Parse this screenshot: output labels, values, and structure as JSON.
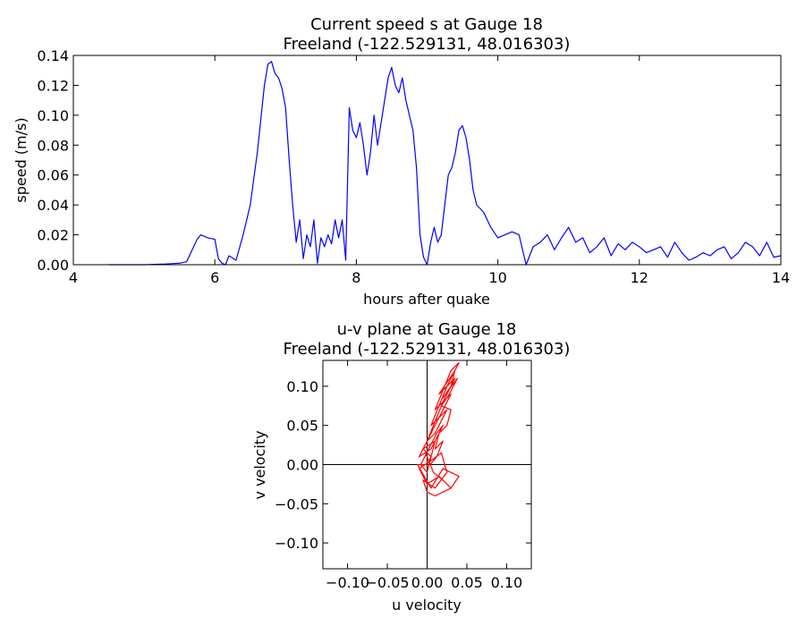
{
  "chart_data": [
    {
      "type": "line",
      "title_line1": "Current speed s at Gauge 18",
      "title_line2": "Freeland  (-122.529131, 48.016303)",
      "xlabel": "hours after quake",
      "ylabel": "speed (m/s)",
      "xlim": [
        4,
        14
      ],
      "ylim": [
        0,
        0.14
      ],
      "xticks": [
        4,
        6,
        8,
        10,
        12,
        14
      ],
      "xtick_labels": [
        "4",
        "6",
        "8",
        "10",
        "12",
        "14"
      ],
      "yticks": [
        0,
        0.02,
        0.04,
        0.06,
        0.08,
        0.1,
        0.12,
        0.14
      ],
      "ytick_labels": [
        "0.00",
        "0.02",
        "0.04",
        "0.06",
        "0.08",
        "0.10",
        "0.12",
        "0.14"
      ],
      "grid": false,
      "color": "#0000ff",
      "series": [
        {
          "x": [
            4.5,
            5.0,
            5.3,
            5.5,
            5.6,
            5.7,
            5.75,
            5.8,
            5.85,
            5.9,
            6.0,
            6.05,
            6.1,
            6.15,
            6.2,
            6.3,
            6.4,
            6.5,
            6.6,
            6.7,
            6.75,
            6.8,
            6.85,
            6.9,
            6.95,
            7.0,
            7.05,
            7.1,
            7.15,
            7.2,
            7.25,
            7.3,
            7.35,
            7.4,
            7.45,
            7.5,
            7.55,
            7.6,
            7.65,
            7.7,
            7.75,
            7.8,
            7.85,
            7.9,
            7.95,
            8.0,
            8.05,
            8.1,
            8.15,
            8.2,
            8.25,
            8.3,
            8.35,
            8.4,
            8.45,
            8.5,
            8.55,
            8.6,
            8.65,
            8.7,
            8.75,
            8.8,
            8.85,
            8.9,
            8.95,
            9.0,
            9.05,
            9.1,
            9.15,
            9.2,
            9.25,
            9.3,
            9.35,
            9.4,
            9.45,
            9.5,
            9.55,
            9.6,
            9.65,
            9.7,
            9.8,
            9.9,
            10.0,
            10.1,
            10.2,
            10.3,
            10.4,
            10.5,
            10.6,
            10.7,
            10.8,
            10.9,
            11.0,
            11.1,
            11.2,
            11.3,
            11.4,
            11.5,
            11.6,
            11.7,
            11.8,
            11.9,
            12.0,
            12.1,
            12.2,
            12.3,
            12.4,
            12.5,
            12.6,
            12.7,
            12.8,
            12.9,
            13.0,
            13.1,
            13.2,
            13.3,
            13.4,
            13.5,
            13.6,
            13.7,
            13.8,
            13.9,
            14.0
          ],
          "y": [
            0.0,
            0.0,
            0.0005,
            0.001,
            0.002,
            0.012,
            0.017,
            0.02,
            0.019,
            0.018,
            0.017,
            0.004,
            0.001,
            0.0,
            0.006,
            0.003,
            0.02,
            0.04,
            0.075,
            0.12,
            0.134,
            0.136,
            0.128,
            0.125,
            0.118,
            0.105,
            0.07,
            0.04,
            0.015,
            0.03,
            0.004,
            0.02,
            0.012,
            0.03,
            0.001,
            0.018,
            0.012,
            0.02,
            0.014,
            0.03,
            0.018,
            0.03,
            0.003,
            0.105,
            0.09,
            0.085,
            0.095,
            0.08,
            0.06,
            0.075,
            0.1,
            0.08,
            0.095,
            0.11,
            0.125,
            0.132,
            0.12,
            0.115,
            0.125,
            0.11,
            0.1,
            0.09,
            0.065,
            0.02,
            0.005,
            0.0,
            0.015,
            0.025,
            0.015,
            0.02,
            0.04,
            0.06,
            0.065,
            0.075,
            0.09,
            0.093,
            0.085,
            0.07,
            0.05,
            0.04,
            0.035,
            0.025,
            0.018,
            0.02,
            0.022,
            0.02,
            0.0,
            0.012,
            0.015,
            0.02,
            0.01,
            0.018,
            0.025,
            0.015,
            0.018,
            0.008,
            0.012,
            0.018,
            0.006,
            0.014,
            0.01,
            0.015,
            0.012,
            0.008,
            0.01,
            0.012,
            0.005,
            0.015,
            0.008,
            0.003,
            0.005,
            0.008,
            0.006,
            0.01,
            0.012,
            0.004,
            0.008,
            0.015,
            0.012,
            0.006,
            0.015,
            0.005,
            0.006
          ]
        }
      ]
    },
    {
      "type": "line",
      "title_line1": "u-v plane at Gauge 18",
      "title_line2": "Freeland  (-122.529131, 48.016303)",
      "xlabel": "u velocity",
      "ylabel": "v velocity",
      "xlim": [
        -0.131,
        0.131
      ],
      "ylim": [
        -0.133,
        0.133
      ],
      "xticks": [
        -0.1,
        -0.05,
        0.0,
        0.05,
        0.1
      ],
      "xtick_labels": [
        "−0.10",
        "−0.05",
        "0.00",
        "0.05",
        "0.10"
      ],
      "yticks": [
        -0.1,
        -0.05,
        0.0,
        0.05,
        0.1
      ],
      "ytick_labels": [
        "−0.10",
        "−0.05",
        "0.00",
        "0.05",
        "0.10"
      ],
      "grid": false,
      "axes_lines_at_zero": true,
      "color": "#ff0000",
      "series": [
        {
          "u": [
            0.0,
            0.005,
            -0.005,
            0.01,
            0.0,
            -0.008,
            0.012,
            0.02,
            0.005,
            -0.01,
            0.015,
            0.025,
            0.01,
            0.0,
            0.02,
            0.03,
            0.015,
            0.005,
            0.025,
            0.035,
            0.02,
            0.01,
            0.03,
            0.04,
            0.025,
            0.015,
            0.035,
            0.03,
            0.02,
            0.038,
            0.028,
            0.018,
            0.03,
            0.025,
            0.015,
            0.01,
            0.02,
            0.012,
            0.004,
            -0.002,
            0.008,
            0.02,
            0.03,
            0.015,
            0.0,
            -0.01,
            0.005,
            0.018,
            0.025,
            0.01,
            -0.005,
            0.0,
            0.01,
            0.03,
            0.04,
            0.02,
            0.005,
            -0.012,
            0.0
          ],
          "v": [
            0.0,
            0.01,
            0.02,
            0.03,
            -0.01,
            0.0,
            0.04,
            0.05,
            0.02,
            0.01,
            0.06,
            0.07,
            0.04,
            0.03,
            0.08,
            0.09,
            0.06,
            0.05,
            0.1,
            0.11,
            0.08,
            0.07,
            0.12,
            0.13,
            0.1,
            0.09,
            0.12,
            0.1,
            0.085,
            0.11,
            0.09,
            0.075,
            0.07,
            0.05,
            0.04,
            0.02,
            0.03,
            0.01,
            0.0,
            0.015,
            -0.01,
            -0.02,
            -0.03,
            -0.015,
            -0.025,
            -0.005,
            0.005,
            0.015,
            -0.01,
            -0.03,
            -0.02,
            -0.035,
            -0.04,
            -0.03,
            -0.015,
            -0.005,
            -0.03,
            0.0,
            0.0
          ]
        }
      ]
    }
  ]
}
